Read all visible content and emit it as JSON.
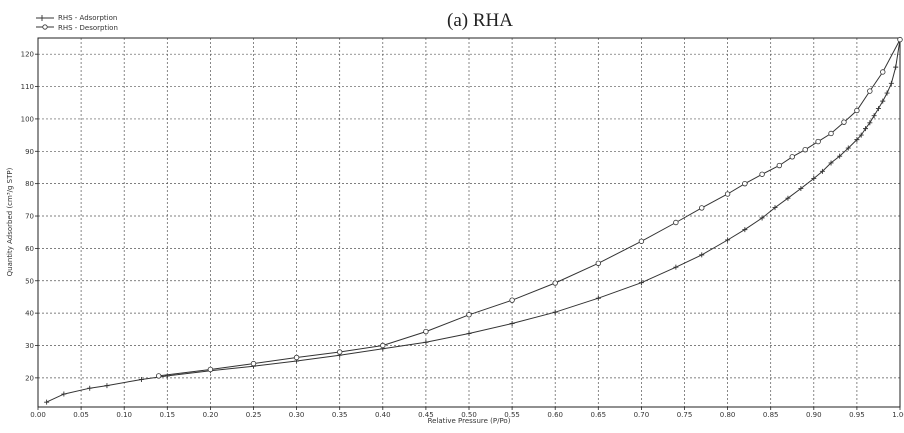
{
  "chart_data": {
    "type": "line",
    "title": "(a) RHA",
    "xlabel": "Relative Pressure (P/Po)",
    "ylabel": "Quantity Adsorbed (cm³/g STP)",
    "xlim": [
      0,
      1.0
    ],
    "ylim": [
      11,
      125
    ],
    "x_ticks": [
      "0.00",
      "0.05",
      "0.10",
      "0.15",
      "0.20",
      "0.25",
      "0.30",
      "0.35",
      "0.40",
      "0.45",
      "0.50",
      "0.55",
      "0.60",
      "0.65",
      "0.70",
      "0.75",
      "0.80",
      "0.85",
      "0.90",
      "0.95",
      "1.00"
    ],
    "y_ticks": [
      "20",
      "30",
      "40",
      "50",
      "60",
      "70",
      "80",
      "90",
      "100",
      "110",
      "120"
    ],
    "grid": true,
    "legend_position": "top-left",
    "series": [
      {
        "name": "RHS - Adsorption",
        "marker": "plus",
        "color": "#333333",
        "points": [
          [
            0.01,
            12.5
          ],
          [
            0.03,
            15
          ],
          [
            0.06,
            16.8
          ],
          [
            0.08,
            17.6
          ],
          [
            0.12,
            19.5
          ],
          [
            0.15,
            20.6
          ],
          [
            0.2,
            22.2
          ],
          [
            0.25,
            23.6
          ],
          [
            0.3,
            25.2
          ],
          [
            0.35,
            27.0
          ],
          [
            0.4,
            29.0
          ],
          [
            0.45,
            31.0
          ],
          [
            0.5,
            33.7
          ],
          [
            0.55,
            36.8
          ],
          [
            0.6,
            40.3
          ],
          [
            0.65,
            44.6
          ],
          [
            0.7,
            49.4
          ],
          [
            0.74,
            54.2
          ],
          [
            0.77,
            58.0
          ],
          [
            0.8,
            62.6
          ],
          [
            0.82,
            65.8
          ],
          [
            0.84,
            69.4
          ],
          [
            0.855,
            72.6
          ],
          [
            0.87,
            75.5
          ],
          [
            0.885,
            78.5
          ],
          [
            0.9,
            81.6
          ],
          [
            0.91,
            83.8
          ],
          [
            0.92,
            86.4
          ],
          [
            0.93,
            88.5
          ],
          [
            0.94,
            91.0
          ],
          [
            0.95,
            93.6
          ],
          [
            0.955,
            95.0
          ],
          [
            0.96,
            97.0
          ],
          [
            0.965,
            98.8
          ],
          [
            0.97,
            101.0
          ],
          [
            0.975,
            103.2
          ],
          [
            0.98,
            105.5
          ],
          [
            0.985,
            108.0
          ],
          [
            0.99,
            111.0
          ],
          [
            0.995,
            116.0
          ],
          [
            1.0,
            124.5
          ]
        ]
      },
      {
        "name": "RHS - Desorption",
        "marker": "circle",
        "color": "#333333",
        "points": [
          [
            1.0,
            124.5
          ],
          [
            0.98,
            114.5
          ],
          [
            0.965,
            108.6
          ],
          [
            0.95,
            102.6
          ],
          [
            0.935,
            99.0
          ],
          [
            0.92,
            95.5
          ],
          [
            0.905,
            93.0
          ],
          [
            0.89,
            90.5
          ],
          [
            0.875,
            88.3
          ],
          [
            0.86,
            85.6
          ],
          [
            0.84,
            82.9
          ],
          [
            0.82,
            80.0
          ],
          [
            0.8,
            76.8
          ],
          [
            0.77,
            72.5
          ],
          [
            0.74,
            68.0
          ],
          [
            0.7,
            62.2
          ],
          [
            0.65,
            55.4
          ],
          [
            0.6,
            49.3
          ],
          [
            0.55,
            44.0
          ],
          [
            0.5,
            39.5
          ],
          [
            0.45,
            34.3
          ],
          [
            0.4,
            30.0
          ],
          [
            0.35,
            28.0
          ],
          [
            0.3,
            26.3
          ],
          [
            0.25,
            24.4
          ],
          [
            0.2,
            22.6
          ],
          [
            0.14,
            20.6
          ]
        ]
      }
    ]
  }
}
